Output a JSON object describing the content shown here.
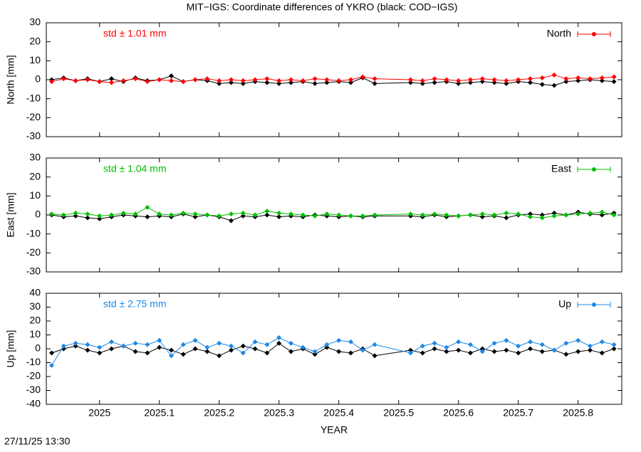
{
  "title": "MIT−IGS: Coordinate differences of YKRO (black: COD−IGS)",
  "timestamp": "27/11/25 13:30",
  "chart_data": [
    {
      "type": "line",
      "ylabel": "North [mm]",
      "annotation": "std ± 1.01 mm",
      "xlim": [
        2024.911,
        2025.873
      ],
      "xticks": [
        2025,
        2025.1,
        2025.2,
        2025.3,
        2025.4,
        2025.5,
        2025.6,
        2025.7,
        2025.8
      ],
      "ylim": [
        -30,
        30
      ],
      "yticks": [
        -30,
        -20,
        -10,
        0,
        10,
        20,
        30
      ],
      "x": [
        2024.92,
        2024.94,
        2024.96,
        2024.98,
        2025.0,
        2025.02,
        2025.04,
        2025.06,
        2025.08,
        2025.1,
        2025.12,
        2025.14,
        2025.16,
        2025.18,
        2025.2,
        2025.22,
        2025.24,
        2025.26,
        2025.28,
        2025.3,
        2025.32,
        2025.34,
        2025.36,
        2025.38,
        2025.4,
        2025.42,
        2025.44,
        2025.46,
        2025.52,
        2025.54,
        2025.56,
        2025.58,
        2025.6,
        2025.62,
        2025.64,
        2025.66,
        2025.68,
        2025.7,
        2025.72,
        2025.74,
        2025.76,
        2025.78,
        2025.8,
        2025.82,
        2025.84,
        2025.86
      ],
      "series": [
        {
          "color": "#000000",
          "values": [
            0,
            1,
            -0.5,
            0.5,
            -1,
            0.5,
            -1,
            1,
            -0.5,
            0,
            2,
            -1,
            0,
            -0.5,
            -2,
            -1.5,
            -2,
            -1,
            -1.5,
            -2,
            -1.5,
            -1,
            -2,
            -1.5,
            -1,
            -1.5,
            1,
            -2,
            -1.5,
            -2,
            -1.5,
            -1,
            -2,
            -1.5,
            -1,
            -1.5,
            -2,
            -1,
            -1.5,
            -2.5,
            -3,
            -1,
            -0.5,
            0,
            -0.5,
            -1
          ]
        },
        {
          "name": "North",
          "color": "#ff0000",
          "values": [
            -1,
            0.5,
            -0.5,
            0,
            -1,
            -1.5,
            -0.5,
            0.5,
            -1,
            0,
            -0.5,
            -1,
            0,
            0.5,
            -0.5,
            0,
            -0.5,
            0,
            0.5,
            -0.5,
            0,
            -0.5,
            0.5,
            0,
            -0.5,
            0,
            1.5,
            0.5,
            0,
            -0.5,
            0.5,
            0,
            -0.5,
            0,
            0.5,
            0,
            -0.5,
            0,
            0.5,
            1,
            2.5,
            0.5,
            1,
            0.5,
            1,
            1.5
          ]
        }
      ]
    },
    {
      "type": "line",
      "ylabel": "East [mm]",
      "annotation": "std ± 1.04 mm",
      "xlim": [
        2024.911,
        2025.873
      ],
      "xticks": [
        2025,
        2025.1,
        2025.2,
        2025.3,
        2025.4,
        2025.5,
        2025.6,
        2025.7,
        2025.8
      ],
      "ylim": [
        -30,
        30
      ],
      "yticks": [
        -30,
        -20,
        -10,
        0,
        10,
        20,
        30
      ],
      "x": [
        2024.92,
        2024.94,
        2024.96,
        2024.98,
        2025.0,
        2025.02,
        2025.04,
        2025.06,
        2025.08,
        2025.1,
        2025.12,
        2025.14,
        2025.16,
        2025.18,
        2025.2,
        2025.22,
        2025.24,
        2025.26,
        2025.28,
        2025.3,
        2025.32,
        2025.34,
        2025.36,
        2025.38,
        2025.4,
        2025.42,
        2025.44,
        2025.46,
        2025.52,
        2025.54,
        2025.56,
        2025.58,
        2025.6,
        2025.62,
        2025.64,
        2025.66,
        2025.68,
        2025.7,
        2025.72,
        2025.74,
        2025.76,
        2025.78,
        2025.8,
        2025.82,
        2025.84,
        2025.86
      ],
      "series": [
        {
          "color": "#000000",
          "values": [
            0,
            -1,
            -0.5,
            -1.5,
            -2,
            -1,
            0,
            -0.5,
            -1,
            -0.5,
            -1,
            0.5,
            -1,
            0,
            -1,
            -3,
            -0.5,
            -1,
            0,
            -1,
            -0.5,
            -1,
            0,
            -0.5,
            -1,
            -0.5,
            -1,
            -0.5,
            -0.5,
            -1,
            0,
            -1,
            -0.5,
            0,
            -1,
            -0.5,
            -1.5,
            0,
            0.5,
            0,
            1,
            0,
            1.5,
            0.5,
            0,
            1
          ]
        },
        {
          "name": "East",
          "color": "#00c000",
          "values": [
            0.5,
            0,
            1,
            0.5,
            -0.5,
            0,
            1,
            0.5,
            4,
            0.5,
            0,
            1,
            0.5,
            0,
            -0.5,
            0.5,
            1,
            0,
            2,
            1,
            0.5,
            0,
            -0.5,
            0.5,
            0,
            -0.5,
            -0.5,
            0,
            0.5,
            0,
            0.5,
            0,
            -0.5,
            0,
            0.5,
            0,
            1,
            0.5,
            -1,
            -1.5,
            -0.5,
            0,
            0.5,
            1,
            1.5,
            0
          ]
        }
      ]
    },
    {
      "type": "line",
      "ylabel": "Up [mm]",
      "annotation": "std ± 2.75 mm",
      "xlabel": "YEAR",
      "xlim": [
        2024.911,
        2025.873
      ],
      "xticks": [
        2025,
        2025.1,
        2025.2,
        2025.3,
        2025.4,
        2025.5,
        2025.6,
        2025.7,
        2025.8
      ],
      "ylim": [
        -40,
        40
      ],
      "yticks": [
        -40,
        -30,
        -20,
        -10,
        0,
        10,
        20,
        30,
        40
      ],
      "x": [
        2024.92,
        2024.94,
        2024.96,
        2024.98,
        2025.0,
        2025.02,
        2025.04,
        2025.06,
        2025.08,
        2025.1,
        2025.12,
        2025.14,
        2025.16,
        2025.18,
        2025.2,
        2025.22,
        2025.24,
        2025.26,
        2025.28,
        2025.3,
        2025.32,
        2025.34,
        2025.36,
        2025.38,
        2025.4,
        2025.42,
        2025.44,
        2025.46,
        2025.52,
        2025.54,
        2025.56,
        2025.58,
        2025.6,
        2025.62,
        2025.64,
        2025.66,
        2025.68,
        2025.7,
        2025.72,
        2025.74,
        2025.76,
        2025.78,
        2025.8,
        2025.82,
        2025.84,
        2025.86
      ],
      "series": [
        {
          "color": "#000000",
          "values": [
            -3,
            0,
            2,
            -1,
            -3,
            0,
            2,
            -2,
            -3,
            1,
            -1,
            -4,
            0,
            -2,
            -5,
            -1,
            2,
            0,
            -3,
            4,
            -2,
            0,
            -4,
            1,
            -2,
            -3,
            0,
            -5,
            -1,
            -3,
            0,
            -2,
            -1,
            -3,
            0,
            -2,
            -1,
            -3,
            0,
            -2,
            -1,
            -4,
            -2,
            -1,
            -3,
            0
          ]
        },
        {
          "name": "Up",
          "color": "#1e88e5",
          "values": [
            -12,
            2,
            4,
            3,
            1,
            5,
            2,
            4,
            3,
            6,
            -5,
            3,
            6,
            1,
            4,
            2,
            -3,
            5,
            3,
            8,
            4,
            1,
            -2,
            3,
            6,
            5,
            -1,
            3,
            -3,
            2,
            4,
            1,
            5,
            3,
            -2,
            4,
            6,
            2,
            5,
            3,
            -1,
            4,
            6,
            2,
            5,
            3
          ]
        }
      ]
    }
  ]
}
